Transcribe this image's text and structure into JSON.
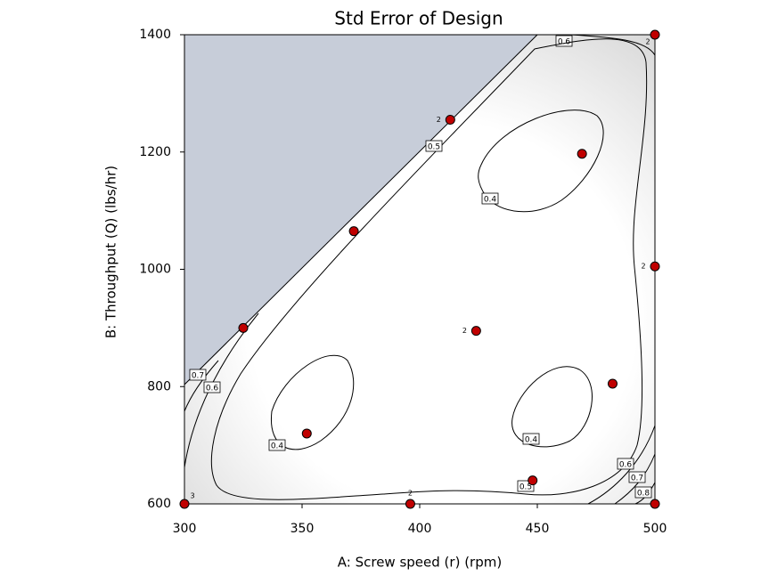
{
  "chart_data": {
    "type": "contour",
    "title": "Std Error of Design",
    "x_label": "A: Screw speed (r) (rpm)",
    "y_label": "B: Throughput (Q) (lbs/hr)",
    "xlim": [
      300,
      500
    ],
    "ylim": [
      600,
      1400
    ],
    "xticks": [
      300,
      350,
      400,
      450,
      500
    ],
    "yticks": [
      600,
      800,
      1000,
      1200,
      1400
    ],
    "contour_levels": [
      0.6,
      0.5,
      0.4,
      0.7,
      0.6,
      0.4,
      0.4,
      0.6,
      0.7,
      0.5,
      0.8
    ],
    "points": {
      "color": "#c00000",
      "x": [
        300,
        325,
        352,
        372,
        396,
        413,
        424,
        448,
        469,
        482,
        500,
        500,
        500
      ],
      "y": [
        600,
        900,
        720,
        1065,
        600,
        1255,
        895,
        640,
        1197,
        805,
        1400,
        1005,
        600
      ],
      "replicates": [
        3,
        null,
        null,
        null,
        2,
        2,
        2,
        null,
        null,
        null,
        2,
        2,
        null
      ]
    }
  }
}
